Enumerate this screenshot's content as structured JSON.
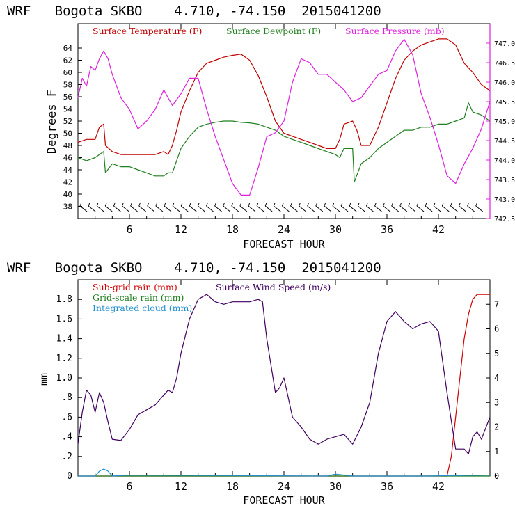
{
  "colors": {
    "temperature": "#c00000",
    "dewpoint": "#208020",
    "pressure": "#e020e0",
    "subgrid_rain": "#d00000",
    "gridscale_rain": "#208020",
    "cloud": "#2090d0",
    "wind": "#400060",
    "axis": "#000000"
  },
  "chart_data": [
    {
      "type": "line",
      "title": "WRF   Bogota SKBO    4.710, -74.150  2015041200",
      "xlabel": "FORECAST HOUR",
      "ylabel": "Degrees F",
      "xlim": [
        0,
        48
      ],
      "ylim": [
        36,
        68
      ],
      "y2lim": [
        742.5,
        747.5
      ],
      "x_ticks": [
        "6",
        "12",
        "18",
        "24",
        "30",
        "36",
        "42"
      ],
      "y_ticks": [
        "38",
        "40",
        "42",
        "44",
        "46",
        "48",
        "50",
        "52",
        "54",
        "56",
        "58",
        "60",
        "62",
        "64"
      ],
      "y2_ticks": [
        "742.5",
        "743.0",
        "743.5",
        "744.0",
        "744.5",
        "745.0",
        "745.5",
        "746.0",
        "746.5",
        "747.0"
      ],
      "series": [
        {
          "name": "Surface Temperature (F)",
          "axis": "left",
          "x": [
            0,
            1,
            2,
            2.5,
            3,
            3.2,
            4,
            5,
            6,
            7,
            8,
            9,
            10,
            10.5,
            11,
            11.5,
            12,
            13,
            14,
            15,
            16,
            17,
            18,
            19,
            20,
            21,
            22,
            23,
            24,
            25,
            26,
            27,
            28,
            29,
            30,
            30.5,
            31,
            32,
            32.5,
            33,
            34,
            35,
            36,
            37,
            38,
            39,
            40,
            41,
            42,
            43,
            44,
            45,
            46,
            47,
            48
          ],
          "values": [
            48.5,
            49,
            49,
            51,
            51.5,
            48,
            47,
            46.5,
            46.5,
            46.5,
            46.5,
            46.5,
            47,
            46.5,
            48,
            50.5,
            53.5,
            57,
            60,
            61.5,
            62,
            62.5,
            62.8,
            63,
            62,
            59.5,
            56,
            52,
            50,
            49.5,
            49,
            48.5,
            48,
            47.5,
            47.5,
            49,
            51.5,
            52,
            50.5,
            48,
            48,
            51,
            55,
            59,
            62,
            63.5,
            64.5,
            65,
            65.5,
            65.5,
            64.5,
            61.5,
            60,
            58,
            57
          ]
        },
        {
          "name": "Surface Dewpoint (F)",
          "axis": "left",
          "x": [
            0,
            1,
            2,
            2.5,
            3,
            3.2,
            4,
            5,
            6,
            7,
            8,
            9,
            10,
            10.5,
            11,
            11.5,
            12,
            13,
            14,
            15,
            16,
            17,
            18,
            19,
            20,
            21,
            22,
            23,
            24,
            25,
            26,
            27,
            28,
            29,
            30,
            30.5,
            31,
            32,
            32.2,
            33,
            34,
            35,
            36,
            37,
            38,
            39,
            40,
            41,
            42,
            43,
            44,
            45,
            45.5,
            46,
            47,
            48
          ],
          "values": [
            46,
            45.5,
            46,
            46.5,
            47,
            43.5,
            45,
            44.5,
            44.5,
            44,
            43.5,
            43,
            43,
            43.5,
            43.5,
            45.5,
            47.5,
            49.5,
            51,
            51.5,
            51.8,
            52,
            52,
            51.8,
            51.7,
            51.5,
            51,
            50.5,
            49.5,
            49,
            48.5,
            48,
            47.5,
            47,
            46.5,
            46,
            47.5,
            47.5,
            42,
            45,
            46,
            47.5,
            48.5,
            49.5,
            50.5,
            50.5,
            51,
            51,
            51.5,
            51.5,
            52,
            52.5,
            55,
            53.5,
            53,
            52
          ]
        },
        {
          "name": "Surface Pressure (mb)",
          "axis": "right",
          "x": [
            0,
            0.5,
            1,
            1.5,
            2,
            2.5,
            3,
            3.5,
            4,
            5,
            6,
            7,
            8,
            9,
            10,
            10.5,
            11,
            12,
            13,
            14,
            15,
            16,
            17,
            18,
            19,
            20,
            21,
            22,
            23,
            24,
            25,
            26,
            27,
            28,
            29,
            30,
            31,
            32,
            33,
            34,
            35,
            36,
            37,
            38,
            39,
            40,
            41,
            42,
            43,
            44,
            45,
            46,
            47,
            48
          ],
          "values": [
            745.6,
            746.1,
            745.9,
            746.4,
            746.3,
            746.6,
            746.8,
            746.6,
            746.2,
            745.6,
            745.3,
            744.8,
            745.0,
            745.3,
            745.8,
            745.6,
            745.4,
            745.7,
            746.1,
            746.1,
            745.3,
            744.6,
            744.0,
            743.4,
            743.1,
            743.1,
            743.8,
            744.6,
            744.7,
            745.0,
            746.0,
            746.6,
            746.5,
            746.2,
            746.2,
            746.0,
            745.8,
            745.5,
            745.6,
            745.9,
            746.2,
            746.3,
            746.8,
            747.1,
            746.7,
            745.7,
            745.1,
            744.4,
            743.6,
            743.4,
            743.9,
            744.3,
            744.8,
            745.5
          ]
        }
      ],
      "annotations": [
        "wind barbs along bottom at ~37 F"
      ]
    },
    {
      "type": "line",
      "title": "WRF   Bogota SKBO    4.710, -74.150  2015041200",
      "xlabel": "FORECAST HOUR",
      "ylabel": "mm",
      "xlim": [
        0,
        48
      ],
      "ylim": [
        0,
        2.0
      ],
      "y2lim": [
        0,
        8
      ],
      "x_ticks": [
        "6",
        "12",
        "18",
        "24",
        "30",
        "36",
        "42"
      ],
      "y_ticks": [
        "0",
        ".2",
        ".4",
        ".6",
        ".8",
        "1.0",
        "1.2",
        "1.4",
        "1.6",
        "1.8"
      ],
      "y2_ticks": [
        "0",
        "1",
        "2",
        "3",
        "4",
        "5",
        "6",
        "7"
      ],
      "series": [
        {
          "name": "Sub-grid rain (mm)",
          "axis": "left",
          "x": [
            0,
            43,
            43.5,
            44,
            44.5,
            45,
            45.5,
            46,
            46.5,
            47,
            48
          ],
          "values": [
            0,
            0,
            0.2,
            0.6,
            1.0,
            1.4,
            1.65,
            1.8,
            1.85,
            1.85,
            1.85
          ]
        },
        {
          "name": "Grid-scale rain (mm)",
          "axis": "left",
          "x": [
            0,
            48
          ],
          "values": [
            0,
            0
          ]
        },
        {
          "name": "Integrated cloud (mm)",
          "axis": "left",
          "x": [
            0,
            2,
            2.5,
            3,
            3.5,
            4,
            6,
            29,
            30,
            31,
            32,
            40,
            48
          ],
          "values": [
            0,
            0,
            0.05,
            0.07,
            0.05,
            0,
            0.01,
            0,
            0.02,
            0.01,
            0,
            0,
            0.01
          ]
        },
        {
          "name": "Surface Wind Speed (m/s)",
          "axis": "right",
          "x": [
            0,
            0.5,
            1,
            1.5,
            2,
            2.5,
            3,
            3.5,
            4,
            5,
            6,
            7,
            8,
            9,
            10,
            10.5,
            11,
            11.5,
            12,
            13,
            14,
            15,
            16,
            17,
            18,
            19,
            20,
            21,
            21.5,
            22,
            23,
            23.5,
            24,
            25,
            26,
            27,
            28,
            29,
            30,
            31,
            32,
            33,
            34,
            35,
            36,
            37,
            38,
            39,
            40,
            41,
            42,
            43,
            44,
            45,
            45.5,
            46,
            46.5,
            47,
            48
          ],
          "values": [
            1.3,
            2.6,
            3.5,
            3.3,
            2.6,
            3.4,
            3.0,
            2.2,
            1.5,
            1.45,
            1.9,
            2.5,
            2.7,
            2.9,
            3.3,
            3.5,
            3.4,
            4.0,
            5.0,
            6.4,
            7.2,
            7.4,
            7.1,
            7.0,
            7.1,
            7.1,
            7.1,
            7.2,
            7.1,
            5.6,
            3.4,
            3.6,
            4.0,
            2.4,
            2.0,
            1.5,
            1.3,
            1.5,
            1.6,
            1.7,
            1.3,
            2.0,
            3.0,
            5.0,
            6.3,
            6.7,
            6.3,
            6.0,
            6.2,
            6.3,
            5.9,
            3.4,
            1.1,
            1.1,
            0.9,
            1.6,
            1.8,
            1.5,
            2.4
          ]
        }
      ]
    }
  ]
}
